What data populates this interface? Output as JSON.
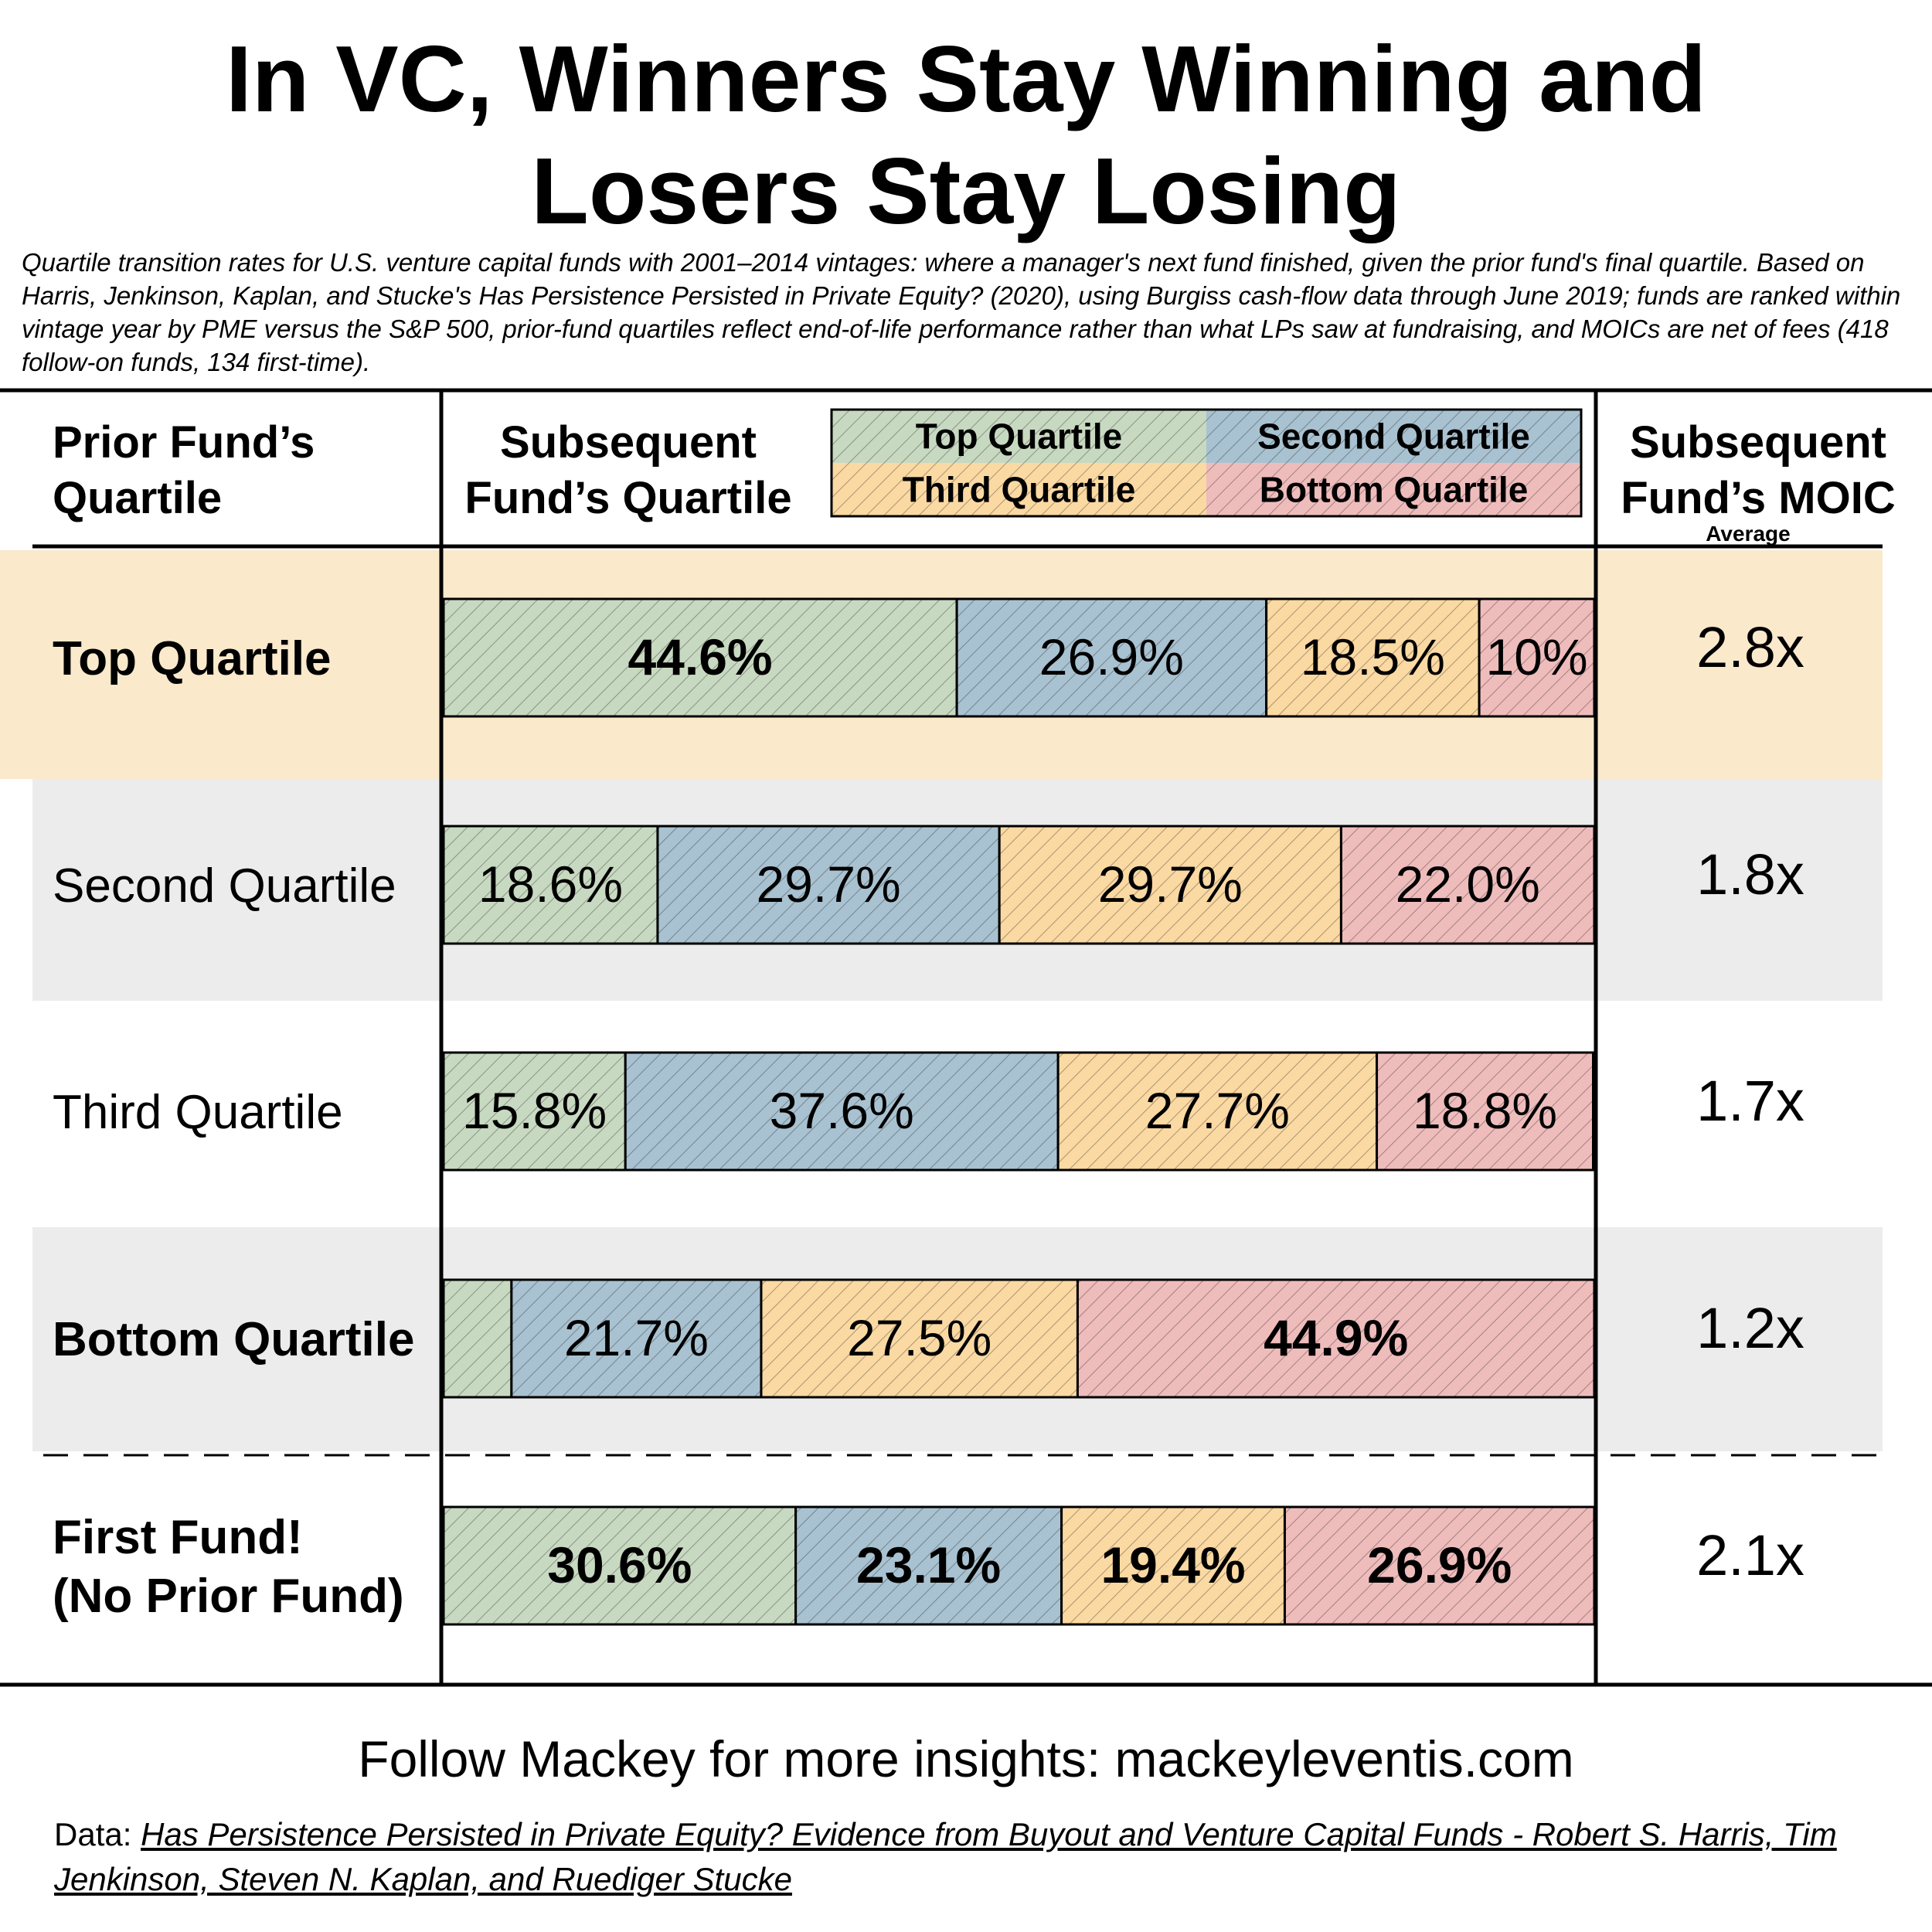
{
  "title_lines": [
    "In VC, Winners Stay Winning and",
    "Losers Stay Losing"
  ],
  "subtitle": "Quartile transition rates for U.S. venture capital funds with 2001–2014 vintages: where a manager's next fund finished, given the prior fund's final quartile. Based on Harris, Jenkinson, Kaplan, and Stucke's Has Persistence Persisted in Private Equity? (2020), using Burgiss cash-flow data through June 2019; funds are ranked within vintage year by PME versus the S&P 500, prior-fund quartiles reflect end-of-life performance rather than what LPs saw at fundraising, and MOICs are net of fees (418 follow-on funds, 134 first-time).",
  "headers": {
    "prior": [
      "Prior Fund’s",
      "Quartile"
    ],
    "subsequent": [
      "Subsequent",
      "Fund’s Quartile"
    ],
    "moic": [
      "Subsequent",
      "Fund’s MOIC"
    ],
    "moic_sub": "Average"
  },
  "legend": [
    "Top Quartile",
    "Second Quartile",
    "Third Quartile",
    "Bottom Quartile"
  ],
  "colors": {
    "top": "#c8d9c1",
    "second": "#a9c2d1",
    "third": "#fbd9a3",
    "bottom": "#efbcbc",
    "highlight_row": "#fbe9cc",
    "stripe_row": "#ececec"
  },
  "chart_data": {
    "type": "bar",
    "orientation": "horizontal",
    "stacked": true,
    "xlim": [
      0,
      100
    ],
    "categories": [
      "Top Quartile",
      "Second Quartile",
      "Third Quartile",
      "Bottom Quartile",
      "First Fund! (No Prior Fund)"
    ],
    "series": [
      {
        "name": "Top Quartile",
        "values": [
          44.6,
          18.6,
          15.8,
          5.9,
          30.6
        ]
      },
      {
        "name": "Second Quartile",
        "values": [
          26.9,
          29.7,
          37.6,
          21.7,
          23.1
        ]
      },
      {
        "name": "Third Quartile",
        "values": [
          18.5,
          29.7,
          27.7,
          27.5,
          19.4
        ]
      },
      {
        "name": "Bottom Quartile",
        "values": [
          10.0,
          22.0,
          18.8,
          44.9,
          26.9
        ]
      }
    ],
    "data_labels": [
      [
        "44.6%",
        "26.9%",
        "18.5%",
        "10%"
      ],
      [
        "18.6%",
        "29.7%",
        "29.7%",
        "22.0%"
      ],
      [
        "15.8%",
        "37.6%",
        "27.7%",
        "18.8%"
      ],
      [
        "",
        "21.7%",
        "27.5%",
        "44.9%"
      ],
      [
        "30.6%",
        "23.1%",
        "19.4%",
        "26.9%"
      ]
    ],
    "bold_labels": [
      [
        true,
        false,
        false,
        false
      ],
      [
        false,
        false,
        false,
        false
      ],
      [
        false,
        false,
        false,
        false
      ],
      [
        false,
        false,
        false,
        true
      ],
      [
        true,
        true,
        true,
        true
      ]
    ],
    "row_labels": [
      [
        "Top Quartile"
      ],
      [
        "Second Quartile"
      ],
      [
        "Third Quartile"
      ],
      [
        "Bottom Quartile"
      ],
      [
        "First Fund!",
        "(No Prior Fund)"
      ]
    ],
    "row_label_bold": [
      true,
      false,
      false,
      true,
      true
    ],
    "moic": [
      "2.8x",
      "1.8x",
      "1.7x",
      "1.2x",
      "2.1x"
    ],
    "legend_position": "top"
  },
  "footer": "Follow Mackey for more insights: mackeyleventis.com",
  "source_label": "Data: ",
  "source_text": "Has Persistence Persisted in Private Equity? Evidence from Buyout and Venture Capital Funds - Robert S. Harris, Tim Jenkinson, Steven N. Kaplan, and Ruediger Stucke"
}
